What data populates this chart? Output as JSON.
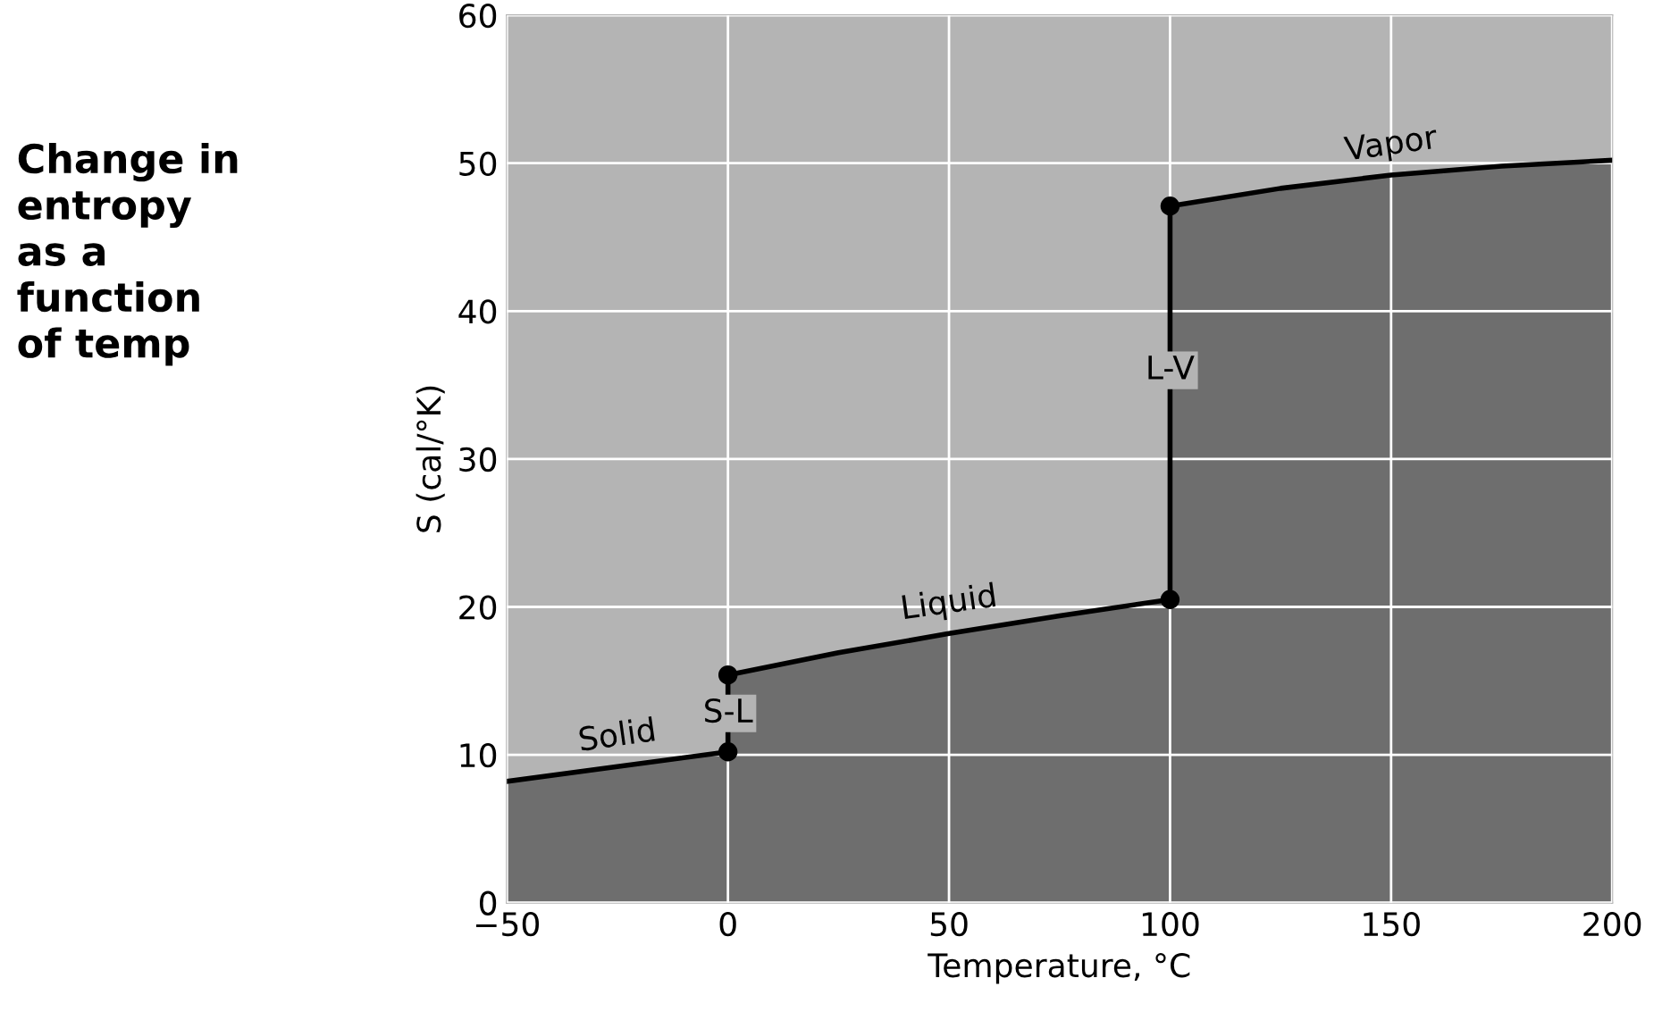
{
  "chart_data": {
    "type": "area",
    "title": "Change in\nentropy\nas a\nfunction\nof temp",
    "xlabel": "Temperature, °C",
    "ylabel": "S (cal/°K)",
    "xlim": [
      -50,
      200
    ],
    "xticks": [
      {
        "value": -50,
        "label": "−50"
      },
      0,
      50,
      100,
      150,
      200
    ],
    "ylim": [
      0,
      60
    ],
    "yticks": [
      0,
      10,
      20,
      30,
      40,
      50,
      60
    ],
    "grid": true,
    "series": [
      {
        "color": "#6e6e6e",
        "line_style": "solid",
        "x": [
          -50,
          -25,
          0,
          0,
          25,
          50,
          75,
          100,
          100,
          125,
          150,
          175,
          200
        ],
        "values": [
          8.2,
          9.2,
          10.2,
          15.4,
          16.9,
          18.2,
          19.4,
          20.5,
          47.1,
          48.3,
          49.2,
          49.8,
          50.2
        ]
      },
      {
        "type": "scatter",
        "color": "#000000",
        "marker": "circle",
        "x": [
          0,
          0,
          100,
          100
        ],
        "values": [
          10.2,
          15.4,
          20.5,
          47.1
        ]
      }
    ],
    "annotations": [
      {
        "text": "Solid",
        "x": -25,
        "y": 9.2
      },
      {
        "text": "S-L",
        "x": 0,
        "y": 12.8
      },
      {
        "text": "Liquid",
        "x": 50,
        "y": 18.2
      },
      {
        "text": "L-V",
        "x": 100,
        "y": 36
      },
      {
        "text": "Vapor",
        "x": 150,
        "y": 49.2
      }
    ]
  }
}
